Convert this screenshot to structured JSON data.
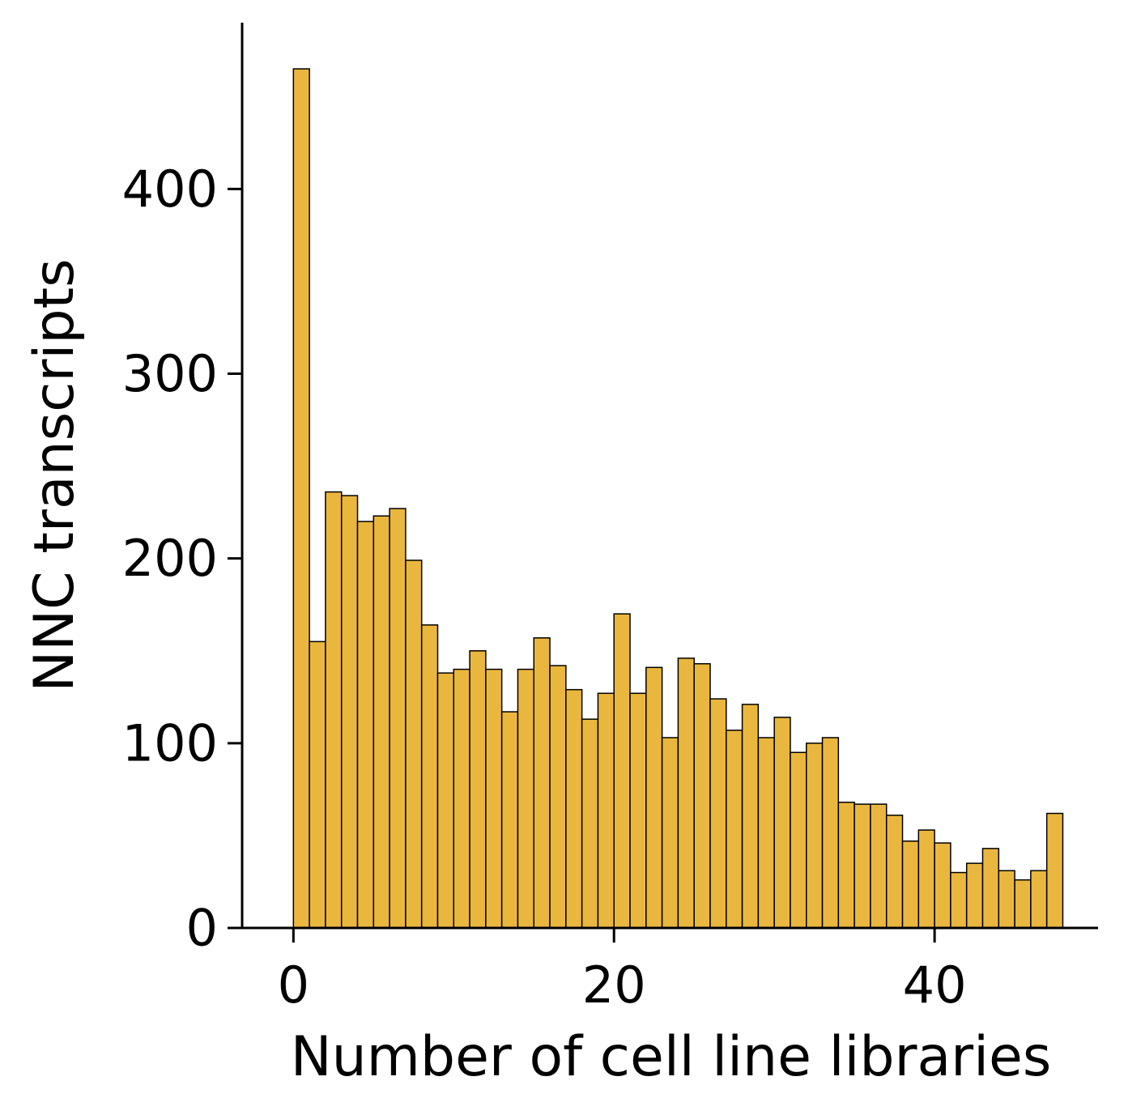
{
  "chart_data": {
    "type": "bar",
    "title": "",
    "xlabel": "Number of cell line libraries",
    "ylabel": "NNC transcripts",
    "bin_width": 1,
    "x": [
      0,
      1,
      2,
      3,
      4,
      5,
      6,
      7,
      8,
      9,
      10,
      11,
      12,
      13,
      14,
      15,
      16,
      17,
      18,
      19,
      20,
      21,
      22,
      23,
      24,
      25,
      26,
      27,
      28,
      29,
      30,
      31,
      32,
      33,
      34,
      35,
      36,
      37,
      38,
      39,
      40,
      41,
      42,
      43,
      44,
      45,
      46,
      47
    ],
    "values": [
      465,
      155,
      236,
      234,
      220,
      223,
      227,
      199,
      164,
      138,
      140,
      150,
      140,
      117,
      140,
      157,
      142,
      129,
      113,
      127,
      170,
      127,
      141,
      103,
      146,
      143,
      124,
      107,
      121,
      103,
      114,
      95,
      100,
      103,
      68,
      67,
      67,
      61,
      47,
      53,
      46,
      30,
      35,
      43,
      31,
      26,
      31,
      62
    ],
    "xlim": [
      -3.2,
      50.2
    ],
    "ylim": [
      0,
      490
    ],
    "xticks": [
      0,
      20,
      40
    ],
    "xtick_labels": [
      "0",
      "20",
      "40"
    ],
    "yticks": [
      0,
      100,
      200,
      300,
      400
    ],
    "ytick_labels": [
      "0",
      "100",
      "200",
      "300",
      "400"
    ],
    "grid": false,
    "colors": {
      "bar_fill": "#EAB73E",
      "bar_edge": "#000000",
      "axis": "#000000"
    }
  }
}
